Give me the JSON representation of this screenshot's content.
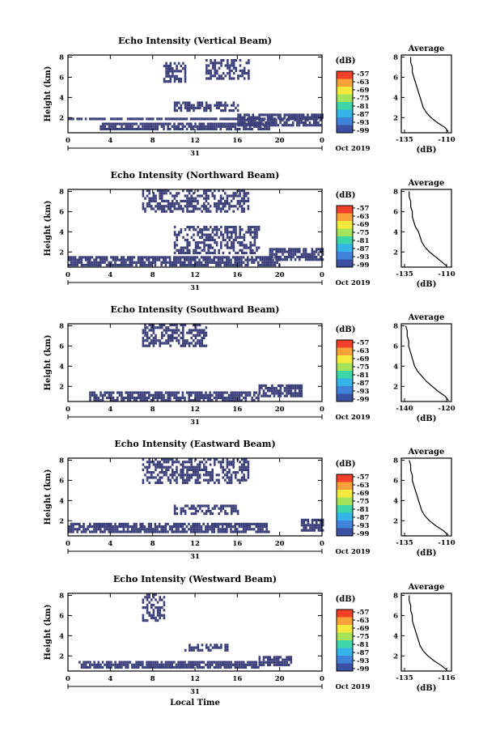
{
  "figure": {
    "xlabel": "Local Time",
    "date_label": "Oct 2019",
    "day_label": "31",
    "ylabel": "Height (km)",
    "unit_label": "(dB)",
    "avg_title": "Average",
    "avg_xlabel": "(dB)"
  },
  "colorbar": {
    "ticks": [
      "-57",
      "-63",
      "-69",
      "-75",
      "-81",
      "-87",
      "-93",
      "-99"
    ],
    "colors": [
      "#f2402a",
      "#f9a23a",
      "#f5ea3c",
      "#a4e35a",
      "#3fd6a7",
      "#35b4e8",
      "#3f84d8",
      "#3b4fa3"
    ]
  },
  "chart_data": [
    {
      "type": "heatmap",
      "title": "Echo Intensity (Vertical Beam)",
      "ylabel": "Height (km)",
      "xlabel": "",
      "xticks": [
        "0",
        "4",
        "8",
        "12",
        "16",
        "20",
        "0"
      ],
      "yticks": [
        "2",
        "4",
        "6",
        "8"
      ],
      "xlim": [
        0,
        24
      ],
      "ylim": [
        0.5,
        8.2
      ],
      "fill_color": "#3b3f7a",
      "colorbar_unit": "(dB)",
      "colorbar_ticks": [
        -57,
        -63,
        -69,
        -75,
        -81,
        -87,
        -93,
        -99
      ],
      "echo_regions_hours_km": [
        {
          "x": [
            0,
            24
          ],
          "y": [
            1.8,
            2.0
          ]
        },
        {
          "x": [
            3,
            19
          ],
          "y": [
            0.9,
            1.5
          ]
        },
        {
          "x": [
            10,
            16
          ],
          "y": [
            2.7,
            3.6
          ]
        },
        {
          "x": [
            16,
            24
          ],
          "y": [
            1.2,
            2.4
          ]
        },
        {
          "x": [
            9,
            11
          ],
          "y": [
            5.5,
            7.5
          ]
        },
        {
          "x": [
            13,
            17
          ],
          "y": [
            6.0,
            7.8
          ]
        }
      ],
      "average": {
        "title": "Average",
        "xlabel": "(dB)",
        "xticks": [
          "-135",
          "-110"
        ],
        "yticks": [
          "2",
          "4",
          "6",
          "8"
        ],
        "xlim": [
          -140,
          -108
        ],
        "height_km": [
          0.6,
          1.0,
          1.5,
          2.0,
          2.5,
          3.0,
          3.5,
          4.0,
          4.5,
          5.0,
          5.5,
          6.0,
          6.5,
          7.0,
          7.5,
          8.0
        ],
        "value_db": [
          -110,
          -112,
          -117,
          -121,
          -124,
          -126,
          -127,
          -128,
          -129,
          -130,
          -131,
          -132,
          -133,
          -133,
          -134,
          -134
        ]
      }
    },
    {
      "type": "heatmap",
      "title": "Echo Intensity (Northward Beam)",
      "ylabel": "Height (km)",
      "xlabel": "",
      "xticks": [
        "0",
        "4",
        "8",
        "12",
        "16",
        "20",
        "0"
      ],
      "yticks": [
        "2",
        "4",
        "6",
        "8"
      ],
      "xlim": [
        0,
        24
      ],
      "ylim": [
        0.5,
        8.2
      ],
      "fill_color": "#3b3f7a",
      "colorbar_unit": "(dB)",
      "colorbar_ticks": [
        -57,
        -63,
        -69,
        -75,
        -81,
        -87,
        -93,
        -99
      ],
      "echo_regions_hours_km": [
        {
          "x": [
            0,
            20
          ],
          "y": [
            0.8,
            1.6
          ]
        },
        {
          "x": [
            10,
            18
          ],
          "y": [
            2.0,
            4.6
          ]
        },
        {
          "x": [
            7,
            17
          ],
          "y": [
            6.0,
            8.2
          ]
        },
        {
          "x": [
            19,
            24
          ],
          "y": [
            1.2,
            2.4
          ]
        }
      ],
      "average": {
        "title": "Average",
        "xlabel": "(dB)",
        "xticks": [
          "-135",
          "-110"
        ],
        "yticks": [
          "2",
          "4",
          "6",
          "8"
        ],
        "xlim": [
          -140,
          -108
        ],
        "height_km": [
          0.6,
          1.0,
          1.5,
          2.0,
          2.5,
          3.0,
          3.5,
          4.0,
          4.5,
          5.0,
          5.5,
          6.0,
          6.5,
          7.0,
          7.5,
          8.0
        ],
        "value_db": [
          -111,
          -114,
          -118,
          -122,
          -125,
          -127,
          -128,
          -129,
          -131,
          -132,
          -133,
          -133,
          -134,
          -134,
          -135,
          -135
        ]
      }
    },
    {
      "type": "heatmap",
      "title": "Echo Intensity (Southward Beam)",
      "ylabel": "Height (km)",
      "xlabel": "",
      "xticks": [
        "0",
        "4",
        "8",
        "12",
        "16",
        "20",
        "0"
      ],
      "yticks": [
        "2",
        "4",
        "6",
        "8"
      ],
      "xlim": [
        0,
        24
      ],
      "ylim": [
        0.5,
        8.2
      ],
      "fill_color": "#3b3f7a",
      "colorbar_unit": "(dB)",
      "colorbar_ticks": [
        -57,
        -63,
        -69,
        -75,
        -81,
        -87,
        -93,
        -99
      ],
      "echo_regions_hours_km": [
        {
          "x": [
            2,
            18
          ],
          "y": [
            0.7,
            1.5
          ]
        },
        {
          "x": [
            18,
            22
          ],
          "y": [
            1.0,
            2.2
          ]
        },
        {
          "x": [
            7,
            13
          ],
          "y": [
            6.0,
            8.2
          ]
        }
      ],
      "average": {
        "title": "Average",
        "xlabel": "(dB)",
        "xticks": [
          "-140",
          "-120"
        ],
        "yticks": [
          "2",
          "4",
          "6",
          "8"
        ],
        "xlim": [
          -142,
          -108
        ],
        "height_km": [
          0.6,
          1.0,
          1.5,
          2.0,
          2.5,
          3.0,
          3.5,
          4.0,
          4.5,
          5.0,
          5.5,
          6.0,
          6.5,
          7.0,
          7.5,
          8.0
        ],
        "value_db": [
          -110,
          -112,
          -117,
          -121,
          -125,
          -128,
          -131,
          -133,
          -134,
          -135,
          -136,
          -137,
          -137,
          -138,
          -138,
          -139
        ]
      }
    },
    {
      "type": "heatmap",
      "title": "Echo Intensity (Eastward Beam)",
      "ylabel": "Height (km)",
      "xlabel": "",
      "xticks": [
        "0",
        "4",
        "8",
        "12",
        "16",
        "20",
        "0"
      ],
      "yticks": [
        "2",
        "4",
        "6",
        "8"
      ],
      "xlim": [
        0,
        24
      ],
      "ylim": [
        0.5,
        8.2
      ],
      "fill_color": "#3b3f7a",
      "colorbar_unit": "(dB)",
      "colorbar_ticks": [
        -57,
        -63,
        -69,
        -75,
        -81,
        -87,
        -93,
        -99
      ],
      "echo_regions_hours_km": [
        {
          "x": [
            0,
            19
          ],
          "y": [
            0.9,
            1.8
          ]
        },
        {
          "x": [
            10,
            16
          ],
          "y": [
            2.6,
            3.6
          ]
        },
        {
          "x": [
            7,
            17
          ],
          "y": [
            5.8,
            8.2
          ]
        },
        {
          "x": [
            22,
            24
          ],
          "y": [
            1.0,
            2.2
          ]
        }
      ],
      "average": {
        "title": "Average",
        "xlabel": "(dB)",
        "xticks": [
          "-135",
          "-110"
        ],
        "yticks": [
          "2",
          "4",
          "6",
          "8"
        ],
        "xlim": [
          -140,
          -108
        ],
        "height_km": [
          0.6,
          1.0,
          1.5,
          2.0,
          2.5,
          3.0,
          3.5,
          4.0,
          4.5,
          5.0,
          5.5,
          6.0,
          6.5,
          7.0,
          7.5,
          8.0
        ],
        "value_db": [
          -110,
          -113,
          -118,
          -122,
          -125,
          -127,
          -128,
          -129,
          -130,
          -131,
          -132,
          -133,
          -133,
          -134,
          -134,
          -135
        ]
      }
    },
    {
      "type": "heatmap",
      "title": "Echo Intensity (Westward Beam)",
      "ylabel": "Height (km)",
      "xlabel": "Local Time",
      "xticks": [
        "0",
        "4",
        "8",
        "12",
        "16",
        "20",
        "0"
      ],
      "yticks": [
        "2",
        "4",
        "6",
        "8"
      ],
      "xlim": [
        0,
        24
      ],
      "ylim": [
        0.5,
        8.2
      ],
      "fill_color": "#3b3f7a",
      "colorbar_unit": "(dB)",
      "colorbar_ticks": [
        -57,
        -63,
        -69,
        -75,
        -81,
        -87,
        -93,
        -99
      ],
      "echo_regions_hours_km": [
        {
          "x": [
            1,
            18
          ],
          "y": [
            0.8,
            1.5
          ]
        },
        {
          "x": [
            18,
            21
          ],
          "y": [
            1.0,
            2.0
          ]
        },
        {
          "x": [
            7,
            9
          ],
          "y": [
            5.5,
            8.2
          ]
        },
        {
          "x": [
            11,
            15
          ],
          "y": [
            2.5,
            3.2
          ]
        }
      ],
      "average": {
        "title": "Average",
        "xlabel": "(dB)",
        "xticks": [
          "-135",
          "-116"
        ],
        "yticks": [
          "2",
          "4",
          "6",
          "8"
        ],
        "xlim": [
          -140,
          -108
        ],
        "height_km": [
          0.6,
          1.0,
          1.5,
          2.0,
          2.5,
          3.0,
          3.5,
          4.0,
          4.5,
          5.0,
          5.5,
          6.0,
          6.5,
          7.0,
          7.5,
          8.0
        ],
        "value_db": [
          -111,
          -114,
          -119,
          -123,
          -126,
          -128,
          -129,
          -130,
          -131,
          -132,
          -133,
          -133,
          -134,
          -134,
          -135,
          -135
        ]
      }
    }
  ]
}
